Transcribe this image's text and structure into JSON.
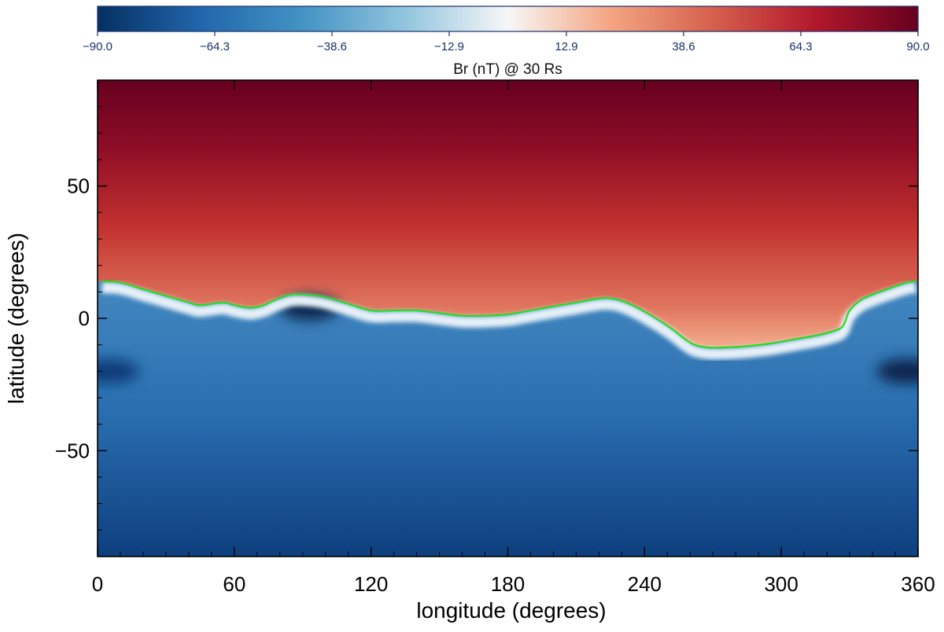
{
  "chart_data": {
    "type": "heatmap",
    "title": "",
    "colorbar": {
      "label": "Br (nT) @ 30 Rs",
      "ticks": [
        "−90.0",
        "−64.3",
        "−38.6",
        "−12.9",
        "12.9",
        "38.6",
        "64.3",
        "90.0"
      ],
      "range": [
        -90,
        90
      ],
      "colormap": [
        "#053061",
        "#2166ac",
        "#4393c3",
        "#92c5de",
        "#f7f7f7",
        "#f4a582",
        "#d6604d",
        "#b2182b",
        "#67001f"
      ],
      "placement": "top"
    },
    "xlabel": "longitude (degrees)",
    "ylabel": "latitude (degrees)",
    "xlim": [
      0,
      360
    ],
    "ylim": [
      -90,
      90
    ],
    "xticks": [
      0,
      60,
      120,
      180,
      240,
      300,
      360
    ],
    "xtick_labels": [
      "0",
      "60",
      "120",
      "180",
      "240",
      "300",
      "360"
    ],
    "yticks": [
      50,
      0,
      -50
    ],
    "ytick_labels": [
      "50",
      "0",
      "−50"
    ],
    "neutral_line": {
      "color": "#22dd22",
      "lon": [
        2,
        10,
        20,
        30,
        40,
        45,
        55,
        60,
        67,
        73,
        78,
        85,
        92,
        100,
        110,
        120,
        130,
        140,
        150,
        160,
        170,
        180,
        190,
        200,
        210,
        220,
        226,
        232,
        238,
        245,
        252,
        258,
        262,
        268,
        275,
        285,
        295,
        305,
        315,
        322,
        327,
        330,
        335,
        340,
        348,
        355,
        359
      ],
      "lat": [
        14,
        13.5,
        11,
        8.5,
        6,
        5,
        6,
        5,
        4,
        5,
        7,
        9,
        9,
        8,
        5.5,
        3,
        3,
        3,
        2,
        1,
        1,
        1.5,
        3,
        4.5,
        6,
        7.5,
        7.5,
        6,
        3.5,
        0,
        -4,
        -8,
        -10,
        -11,
        -11,
        -10.5,
        -9.5,
        -8,
        -6.5,
        -5,
        -3,
        3,
        7,
        9,
        11.5,
        13.5,
        14
      ]
    },
    "features": [
      {
        "lon": 93,
        "lat": 4,
        "value": -88
      },
      {
        "lon": 355,
        "lat": -20,
        "value": -90
      },
      {
        "lon": 5,
        "lat": -20,
        "value": -75
      }
    ]
  }
}
